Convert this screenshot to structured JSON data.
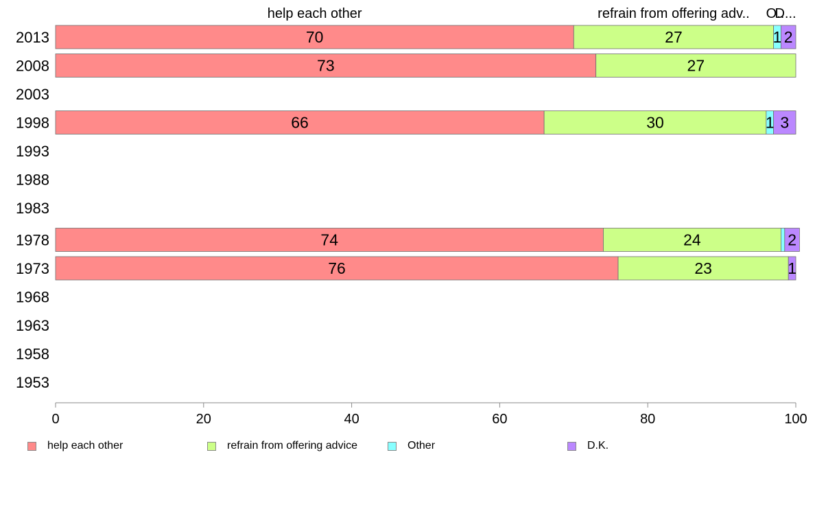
{
  "chart_data": {
    "type": "bar",
    "orientation": "horizontal",
    "stacked": true,
    "categories": [
      "2013",
      "2008",
      "2003",
      "1998",
      "1993",
      "1988",
      "1983",
      "1978",
      "1973",
      "1968",
      "1963",
      "1958",
      "1953"
    ],
    "series": [
      {
        "name": "help each other",
        "color": "#ff8a8a",
        "values": [
          70,
          73,
          null,
          66,
          null,
          null,
          null,
          74,
          76,
          null,
          null,
          null,
          null
        ]
      },
      {
        "name": "refrain from offering advice",
        "color": "#ccff88",
        "values": [
          27,
          27,
          null,
          30,
          null,
          null,
          null,
          24,
          23,
          null,
          null,
          null,
          null
        ]
      },
      {
        "name": "Other",
        "color": "#88ffff",
        "values": [
          1,
          0,
          null,
          1,
          null,
          null,
          null,
          0.5,
          0,
          null,
          null,
          null,
          null
        ]
      },
      {
        "name": "D.K.",
        "color": "#bb88ff",
        "values": [
          2,
          0,
          null,
          3,
          null,
          null,
          null,
          2,
          1,
          null,
          null,
          null,
          null
        ]
      }
    ],
    "data_labels": [
      [
        "70",
        "27",
        "1",
        "2"
      ],
      [
        "73",
        "27",
        "",
        ""
      ],
      [
        "",
        "",
        "",
        ""
      ],
      [
        "66",
        "30",
        "1",
        "3"
      ],
      [
        "",
        "",
        "",
        ""
      ],
      [
        "",
        "",
        "",
        ""
      ],
      [
        "",
        "",
        "",
        ""
      ],
      [
        "74",
        "24",
        "",
        "2"
      ],
      [
        "76",
        "23",
        "",
        "1"
      ],
      [
        "",
        "",
        "",
        ""
      ],
      [
        "",
        "",
        "",
        ""
      ],
      [
        "",
        "",
        "",
        ""
      ],
      [
        "",
        "",
        "",
        ""
      ]
    ],
    "top_labels": [
      "help each other",
      "refrain from offering adv..",
      "O..",
      "D..."
    ],
    "xlim": [
      0,
      100
    ],
    "xticks": [
      "0",
      "20",
      "40",
      "60",
      "80",
      "100"
    ],
    "grid": false,
    "legend_position": "bottom"
  }
}
